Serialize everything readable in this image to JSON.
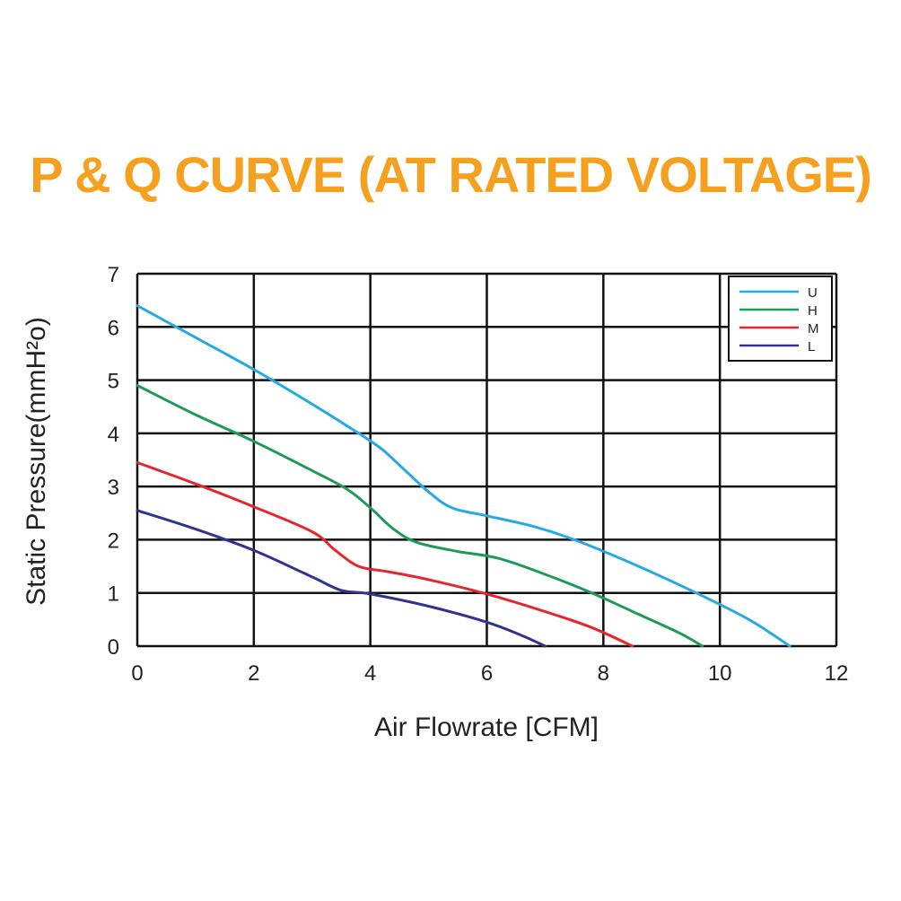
{
  "colors": {
    "title": "#F5A01E",
    "grid": "#111111",
    "U": "#27A9E1",
    "H": "#1E9A5A",
    "M": "#E5262E",
    "L": "#33338F"
  },
  "chart_data": {
    "type": "line",
    "title": "P & Q CURVE (AT RATED VOLTAGE)",
    "xlabel": "Air  Flowrate   [CFM]",
    "ylabel": "Static Pressure(mmH²o)",
    "xlim": [
      0,
      12
    ],
    "ylim": [
      0,
      7
    ],
    "xticks": [
      "0",
      "2",
      "4",
      "6",
      "8",
      "10",
      "12"
    ],
    "yticks": [
      "0",
      "1",
      "2",
      "3",
      "4",
      "5",
      "6",
      "7"
    ],
    "grid": true,
    "legend_position": "top-right",
    "series": [
      {
        "name": "U",
        "points": [
          [
            0,
            6.4
          ],
          [
            1,
            5.8
          ],
          [
            2,
            5.2
          ],
          [
            3,
            4.55
          ],
          [
            3.8,
            4.0
          ],
          [
            4.2,
            3.7
          ],
          [
            4.6,
            3.3
          ],
          [
            5.0,
            2.9
          ],
          [
            5.4,
            2.6
          ],
          [
            6.0,
            2.45
          ],
          [
            6.8,
            2.25
          ],
          [
            7.5,
            2.0
          ],
          [
            8.5,
            1.55
          ],
          [
            9.5,
            1.05
          ],
          [
            10.5,
            0.5
          ],
          [
            11.2,
            0.0
          ]
        ]
      },
      {
        "name": "H",
        "points": [
          [
            0,
            4.9
          ],
          [
            1,
            4.35
          ],
          [
            2,
            3.85
          ],
          [
            3,
            3.3
          ],
          [
            3.6,
            2.95
          ],
          [
            4.0,
            2.6
          ],
          [
            4.4,
            2.2
          ],
          [
            4.8,
            1.95
          ],
          [
            5.5,
            1.78
          ],
          [
            6.2,
            1.65
          ],
          [
            7.0,
            1.35
          ],
          [
            7.8,
            1.0
          ],
          [
            8.6,
            0.6
          ],
          [
            9.3,
            0.25
          ],
          [
            9.7,
            0.0
          ]
        ]
      },
      {
        "name": "M",
        "points": [
          [
            0,
            3.45
          ],
          [
            1,
            3.05
          ],
          [
            2,
            2.62
          ],
          [
            3,
            2.15
          ],
          [
            3.4,
            1.8
          ],
          [
            3.8,
            1.5
          ],
          [
            4.3,
            1.4
          ],
          [
            5.0,
            1.25
          ],
          [
            6.0,
            0.98
          ],
          [
            7.0,
            0.65
          ],
          [
            7.8,
            0.35
          ],
          [
            8.5,
            0.0
          ]
        ]
      },
      {
        "name": "L",
        "points": [
          [
            0,
            2.55
          ],
          [
            1,
            2.2
          ],
          [
            2,
            1.8
          ],
          [
            3,
            1.3
          ],
          [
            3.5,
            1.05
          ],
          [
            4.0,
            0.98
          ],
          [
            5.0,
            0.75
          ],
          [
            6.0,
            0.45
          ],
          [
            6.6,
            0.2
          ],
          [
            7.0,
            0.0
          ]
        ]
      }
    ]
  }
}
